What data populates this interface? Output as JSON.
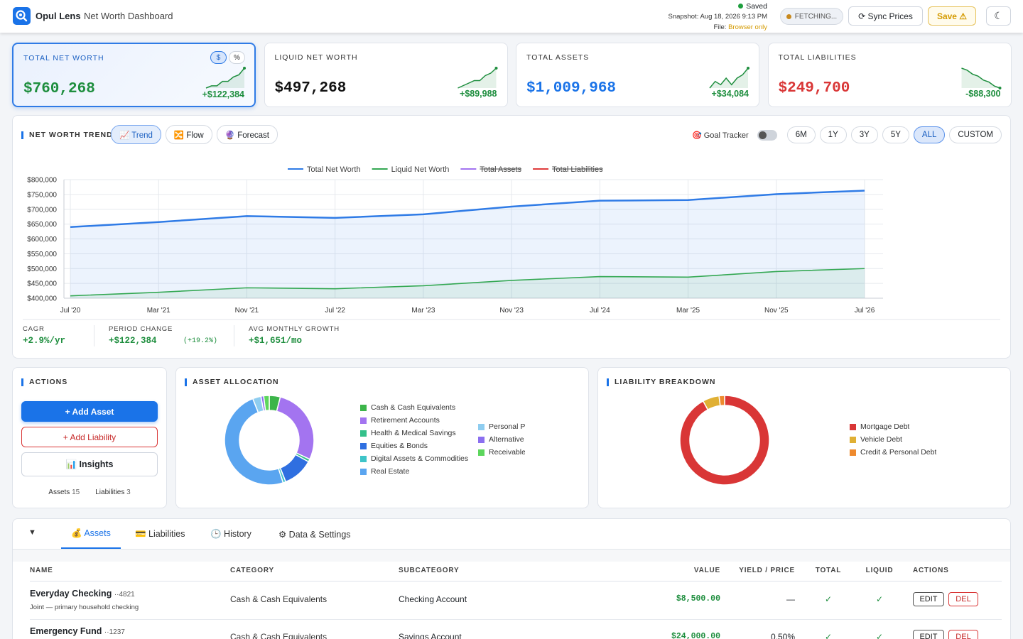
{
  "header": {
    "app_name": "Opul Lens",
    "page_title": "Net Worth Dashboard",
    "save_status": "Saved",
    "snapshot": "Snapshot: Aug 18, 2026 9:13 PM",
    "file_label": "File:",
    "file_value": "Browser only",
    "price_status": "FETCHING...",
    "sync_button": "⟳ Sync Prices",
    "save_button": "Save ⚠"
  },
  "kpis": [
    {
      "label": "TOTAL NET WORTH",
      "value": "$760,268",
      "change": "+$122,384",
      "toggle": [
        "$",
        "%"
      ],
      "sparkline": [
        3,
        4,
        4,
        6,
        6,
        8,
        9,
        12
      ]
    },
    {
      "label": "LIQUID NET WORTH",
      "value": "$497,268",
      "change": "+$89,988",
      "sparkline": [
        3,
        4,
        5,
        6,
        6,
        8,
        9,
        11
      ]
    },
    {
      "label": "TOTAL ASSETS",
      "value": "$1,009,968",
      "change": "+$34,084",
      "sparkline": [
        6,
        8,
        7,
        9,
        7,
        9,
        10,
        12
      ]
    },
    {
      "label": "TOTAL LIABILITIES",
      "value": "$249,700",
      "change": "-$88,300",
      "sparkline": [
        12,
        11,
        9,
        8,
        6,
        5,
        3,
        2
      ]
    }
  ],
  "trend": {
    "title": "NET WORTH TREND",
    "views": [
      "📈 Trend",
      "🔀 Flow",
      "🔮 Forecast"
    ],
    "active_view": 0,
    "goal_tracker": "🎯 Goal Tracker",
    "ranges": [
      "6M",
      "1Y",
      "3Y",
      "5Y",
      "ALL",
      "CUSTOM"
    ],
    "active_range": 4,
    "chart_data": {
      "type": "line",
      "categories": [
        "Jul '20",
        "Mar '21",
        "Nov '21",
        "Jul '22",
        "Mar '23",
        "Nov '23",
        "Jul '24",
        "Mar '25",
        "Nov '25",
        "Jul '26"
      ],
      "series": [
        {
          "name": "Total Net Worth",
          "color": "#2f7be6",
          "values": [
            640000,
            657000,
            677000,
            671000,
            683000,
            709000,
            729000,
            731000,
            751000,
            763000
          ]
        },
        {
          "name": "Liquid Net Worth",
          "color": "#34a853",
          "values": [
            408000,
            420000,
            435000,
            432000,
            442000,
            460000,
            473000,
            471000,
            490000,
            500000
          ]
        },
        {
          "name": "Total Assets",
          "color": "#a374f0",
          "hidden": true
        },
        {
          "name": "Total Liabilities",
          "color": "#e03c3c",
          "hidden": true
        }
      ],
      "ylim": [
        400000,
        800000
      ],
      "yticks": [
        {
          "value": 400000,
          "label": "$400,000"
        },
        {
          "value": 450000,
          "label": "$450,000"
        },
        {
          "value": 500000,
          "label": "$500,000"
        },
        {
          "value": 550000,
          "label": "$550,000"
        },
        {
          "value": 600000,
          "label": "$600,000"
        },
        {
          "value": 650000,
          "label": "$650,000"
        },
        {
          "value": 700000,
          "label": "$700,000"
        },
        {
          "value": 750000,
          "label": "$750,000"
        },
        {
          "value": 800000,
          "label": "$800,000"
        }
      ],
      "grid": true
    },
    "stats": [
      {
        "label": "CAGR",
        "value": "+2.9%/yr"
      },
      {
        "label": "PERIOD CHANGE",
        "value": "+$122,384",
        "note": "(+19.2%)"
      },
      {
        "label": "AVG MONTHLY GROWTH",
        "value": "+$1,651/mo"
      }
    ]
  },
  "actions": {
    "title": "ACTIONS",
    "buttons": [
      "+ Add Asset",
      "+ Add Liability",
      "📊 Insights"
    ],
    "counts": [
      {
        "label": "Assets",
        "value": 15
      },
      {
        "label": "Liabilities",
        "value": 3
      }
    ]
  },
  "asset_allocation": {
    "title": "ASSET ALLOCATION",
    "chart_data": {
      "type": "donut",
      "categories": [
        "Cash & Cash Equivalents",
        "Retirement Accounts",
        "Health & Medical Savings",
        "Equities & Bonds",
        "Digital Assets & Commodities",
        "Real Estate",
        "Personal P",
        "Alternative",
        "Receivable"
      ],
      "colors": [
        "#3cb54a",
        "#a374f0",
        "#34c08a",
        "#2f6fe0",
        "#3ec4c8",
        "#5aa5f0",
        "#8ecdf0",
        "#8b6ff0",
        "#5cd65c"
      ],
      "values": [
        4,
        28,
        1,
        11,
        1,
        49,
        3,
        1,
        2
      ]
    }
  },
  "liability_breakdown": {
    "title": "LIABILITY BREAKDOWN",
    "chart_data": {
      "type": "donut",
      "categories": [
        "Mortgage Debt",
        "Vehicle Debt",
        "Credit & Personal Debt"
      ],
      "colors": [
        "#d93636",
        "#e0b034",
        "#ee8a2e"
      ],
      "values": [
        92,
        6,
        2
      ]
    }
  },
  "tabs": {
    "toggle": "▼",
    "items": [
      "💰 Assets",
      "💳 Liabilities",
      "🕒 History",
      "⚙ Data & Settings"
    ],
    "active": 0
  },
  "table": {
    "columns": [
      "NAME",
      "CATEGORY",
      "SUBCATEGORY",
      "VALUE",
      "YIELD / PRICE",
      "TOTAL",
      "LIQUID",
      "ACTIONS"
    ],
    "rows": [
      {
        "name": "Everyday Checking",
        "account": "··4821",
        "note": "Joint — primary household checking",
        "category": "Cash & Cash Equivalents",
        "subcategory": "Checking Account",
        "value": "$8,500.00",
        "yield": "—",
        "total": "✓",
        "liquid": "✓",
        "actions": [
          "EDIT",
          "DEL"
        ]
      },
      {
        "name": "Emergency Fund",
        "account": "··1237",
        "category": "Cash & Cash Equivalents",
        "subcategory": "Savings Account",
        "value": "$24,000.00",
        "yield": "0.50%",
        "total": "✓",
        "liquid": "✓",
        "actions": [
          "EDIT",
          "DEL"
        ]
      }
    ]
  }
}
